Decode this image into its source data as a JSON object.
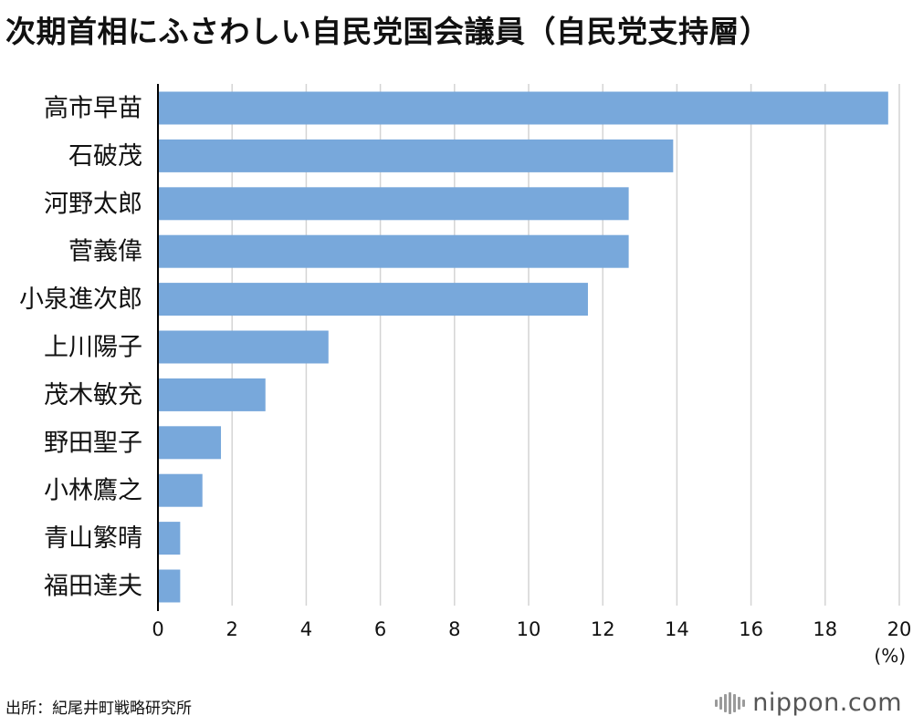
{
  "title": "次期首相にふさわしい自民党国会議員（自民党支持層）",
  "unit_label": "(%)",
  "source": "出所：紀尾井町戦略研究所",
  "logo": {
    "text": "nippon.com",
    "icon": "nippon-logo-bars-icon"
  },
  "colors": {
    "bar": "#78a8db",
    "grid": "#d4d4d4",
    "axis": "#000000",
    "text": "#111111"
  },
  "chart_data": {
    "type": "bar",
    "orientation": "horizontal",
    "title": "次期首相にふさわしい自民党国会議員（自民党支持層）",
    "categories": [
      "高市早苗",
      "石破茂",
      "河野太郎",
      "菅義偉",
      "小泉進次郎",
      "上川陽子",
      "茂木敏充",
      "野田聖子",
      "小林鷹之",
      "青山繁晴",
      "福田達夫"
    ],
    "values": [
      19.7,
      13.9,
      12.7,
      12.7,
      11.6,
      4.6,
      2.9,
      1.7,
      1.2,
      0.6,
      0.6
    ],
    "xlim": [
      0,
      20
    ],
    "xticks": [
      "0",
      "2",
      "4",
      "6",
      "8",
      "10",
      "12",
      "14",
      "16",
      "18",
      "20"
    ],
    "xlabel": "(%)",
    "ylabel": "",
    "grid": "vertical",
    "legend": "none"
  }
}
